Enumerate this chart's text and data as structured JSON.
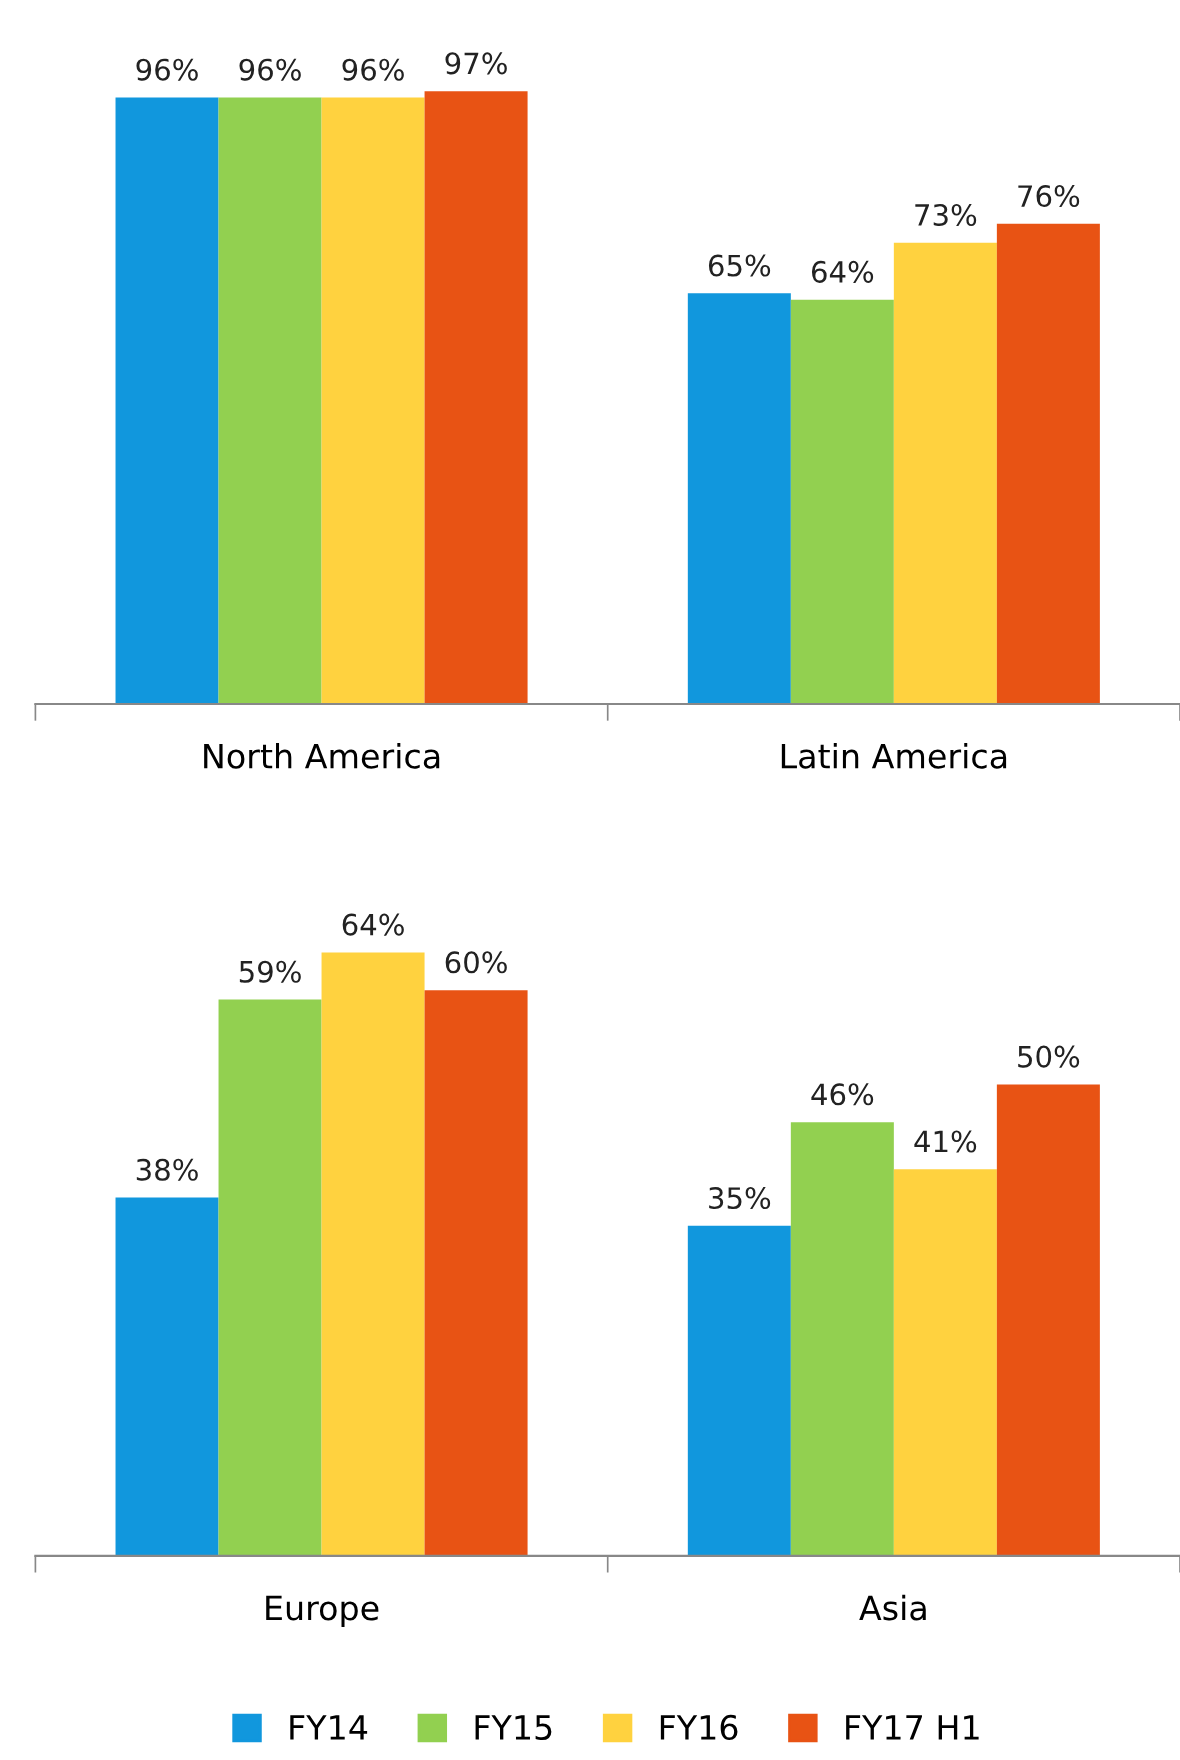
{
  "chart_data": [
    {
      "type": "bar",
      "categories": [
        "North America",
        "Latin America"
      ],
      "tick_labels": "x",
      "grid": false,
      "series": [
        {
          "color": "#1197dd",
          "values": [
            96,
            65
          ],
          "value_labels": [
            "96%",
            "65%"
          ]
        },
        {
          "color": "#92d050",
          "values": [
            96,
            64
          ],
          "value_labels": [
            "96%",
            "64%"
          ]
        },
        {
          "color": "#ffd23f",
          "values": [
            96,
            73
          ],
          "value_labels": [
            "96%",
            "73%"
          ]
        },
        {
          "color": "#e85314",
          "values": [
            97,
            76
          ],
          "value_labels": [
            "97%",
            "76%"
          ]
        }
      ]
    },
    {
      "type": "bar",
      "categories": [
        "Europe",
        "Asia"
      ],
      "tick_labels": "x",
      "legend": "bottom",
      "grid": false,
      "series": [
        {
          "name": "FY14",
          "color": "#1197dd",
          "values": [
            38,
            35
          ],
          "value_labels": [
            "38%",
            "35%"
          ]
        },
        {
          "name": "FY15",
          "color": "#92d050",
          "values": [
            59,
            46
          ],
          "value_labels": [
            "59%",
            "46%"
          ]
        },
        {
          "name": "FY16",
          "color": "#ffd23f",
          "values": [
            64,
            41
          ],
          "value_labels": [
            "64%",
            "41%"
          ]
        },
        {
          "name": "FY17 H1",
          "color": "#e85314",
          "values": [
            60,
            50
          ],
          "value_labels": [
            "60%",
            "50%"
          ]
        }
      ]
    }
  ]
}
